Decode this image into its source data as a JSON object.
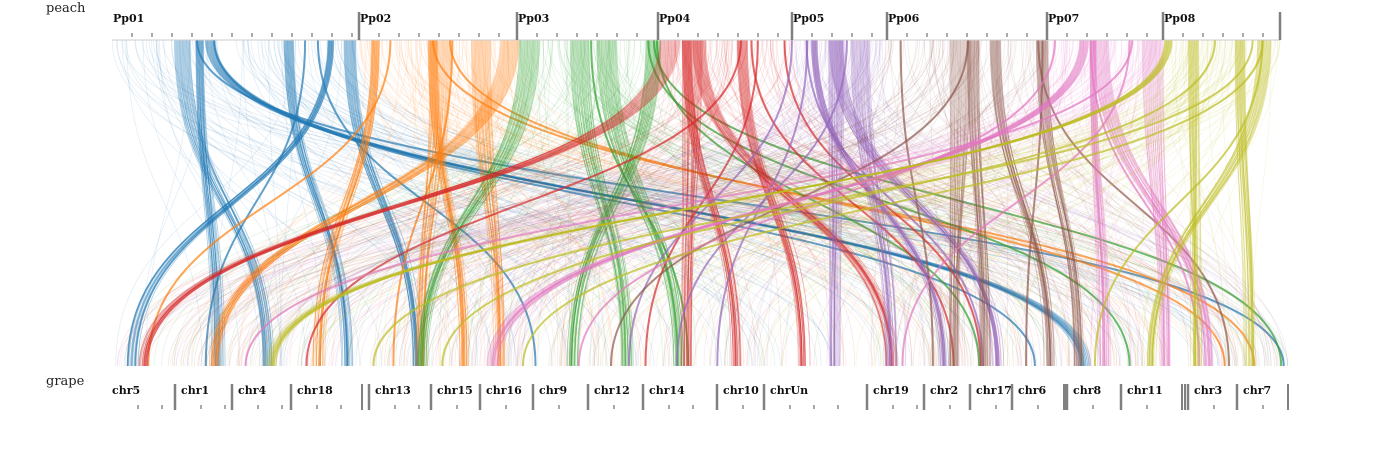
{
  "top_genome": {
    "label": "peach",
    "chromosomes": [
      "Pp01",
      "Pp02",
      "Pp03",
      "Pp04",
      "Pp05",
      "Pp06",
      "Pp07",
      "Pp08"
    ]
  },
  "bottom_genome": {
    "label": "grape",
    "chromosomes": [
      "chr5",
      "chr1",
      "chr4",
      "chr18",
      "chr13",
      "chr15",
      "chr16",
      "chr9",
      "chr12",
      "chr14",
      "chr10",
      "chrUn",
      "chr19",
      "chr2",
      "chr17",
      "chr6",
      "chr8",
      "chr11",
      "chr3",
      "chr7"
    ]
  },
  "colors": {
    "Pp01": "#1f77b4",
    "Pp02": "#ff7f0e",
    "Pp03": "#2ca02c",
    "Pp04": "#d62728",
    "Pp05": "#9467bd",
    "Pp06": "#8c564b",
    "Pp07": "#e377c2",
    "Pp08": "#bcbd22",
    "divider": "#808080"
  }
}
